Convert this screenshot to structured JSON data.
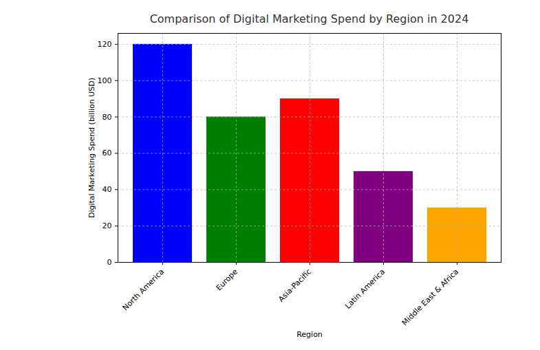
{
  "chart_data": {
    "type": "bar",
    "title": "Comparison of Digital Marketing Spend by Region in 2024",
    "x_label": "Region",
    "y_label": "Digital Marketing Spend (billion USD)",
    "categories": [
      "North America",
      "Europe",
      "Asia-Pacific",
      "Latin America",
      "Middle East & Africa"
    ],
    "values": [
      120,
      80,
      90,
      50,
      30
    ],
    "colors": [
      "blue",
      "green",
      "red",
      "purple",
      "orange"
    ],
    "ylim": [
      0,
      126
    ],
    "yticks": [
      0,
      20,
      40,
      60,
      80,
      100,
      120
    ],
    "grid": true
  }
}
